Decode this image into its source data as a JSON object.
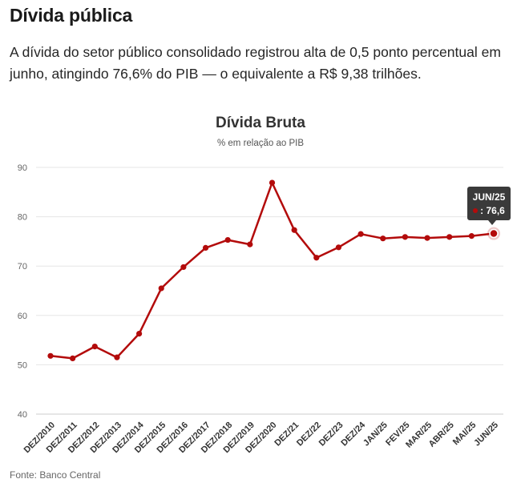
{
  "header": {
    "title": "Dívida pública",
    "lede": "A dívida do setor público consolidado registrou alta de 0,5 ponto percentual em junho, atingindo 76,6% do PIB — o equivalente a R$ 9,38 trilhões."
  },
  "chart_data": {
    "type": "line",
    "title": "Dívida Bruta",
    "subtitle": "% em relação ao PIB",
    "xlabel": "",
    "ylabel": "",
    "ylim": [
      40,
      90
    ],
    "yticks": [
      40,
      50,
      60,
      70,
      80,
      90
    ],
    "grid": true,
    "categories": [
      "DEZ/2010",
      "DEZ/2011",
      "DEZ/2012",
      "DEZ/2013",
      "DEZ/2014",
      "DEZ/2015",
      "DEZ/2016",
      "DEZ/2017",
      "DEZ/2018",
      "DEZ/2019",
      "DEZ/2020",
      "DEZ/21",
      "DEZ/22",
      "DEZ/23",
      "DEZ/24",
      "JAN/25",
      "FEV/25",
      "MAR/25",
      "ABR/25",
      "MAI/25",
      "JUN/25"
    ],
    "series": [
      {
        "name": "Dívida Bruta",
        "color": "#b30b0b",
        "values": [
          51.8,
          51.3,
          53.7,
          51.5,
          56.3,
          65.5,
          69.8,
          73.7,
          75.3,
          74.4,
          86.9,
          77.3,
          71.7,
          73.8,
          76.5,
          75.6,
          75.9,
          75.7,
          75.9,
          76.1,
          76.6
        ]
      }
    ],
    "tooltip": {
      "label": "JUN/25",
      "value_text": ": 76,6"
    }
  },
  "footer": {
    "source": "Fonte: Banco Central"
  }
}
